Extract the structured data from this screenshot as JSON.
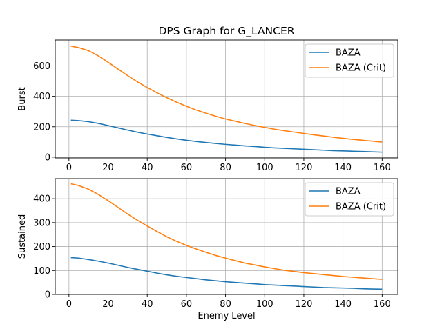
{
  "figure": {
    "title": "DPS Graph for G_LANCER"
  },
  "chart_data": [
    {
      "type": "line",
      "ylabel": "Burst",
      "xlabel": "",
      "xlim": [
        -7,
        168
      ],
      "ylim": [
        -5,
        770
      ],
      "xticks": [
        0,
        20,
        40,
        60,
        80,
        100,
        120,
        140,
        160
      ],
      "yticks": [
        0,
        200,
        400,
        600
      ],
      "grid": true,
      "legend": "top-right",
      "x": [
        1,
        5,
        10,
        15,
        20,
        25,
        30,
        35,
        40,
        45,
        50,
        55,
        60,
        65,
        70,
        75,
        80,
        85,
        90,
        95,
        100,
        105,
        110,
        115,
        120,
        125,
        130,
        135,
        140,
        145,
        150,
        155,
        160
      ],
      "series": [
        {
          "name": "BAZA",
          "color": "#1f77b4",
          "values": [
            243,
            240,
            233,
            222,
            208,
            193,
            178,
            164,
            152,
            141,
            130,
            120,
            111,
            103,
            96,
            90,
            84,
            79,
            74,
            70,
            65,
            61,
            58,
            55,
            52,
            49,
            46,
            43,
            41,
            39,
            37,
            35,
            33
          ]
        },
        {
          "name": "BAZA (Crit)",
          "color": "#ff7f0e",
          "values": [
            730,
            720,
            700,
            666,
            624,
            580,
            536,
            495,
            458,
            423,
            391,
            361,
            335,
            310,
            289,
            269,
            251,
            236,
            221,
            208,
            196,
            184,
            174,
            165,
            156,
            147,
            139,
            131,
            124,
            117,
            111,
            105,
            99
          ]
        }
      ]
    },
    {
      "type": "line",
      "ylabel": "Sustained",
      "xlabel": "Enemy Level",
      "xlim": [
        -7,
        168
      ],
      "ylim": [
        0,
        484
      ],
      "xticks": [
        0,
        20,
        40,
        60,
        80,
        100,
        120,
        140,
        160
      ],
      "yticks": [
        0,
        100,
        200,
        300,
        400
      ],
      "grid": true,
      "legend": "top-right",
      "x": [
        1,
        5,
        10,
        15,
        20,
        25,
        30,
        35,
        40,
        45,
        50,
        55,
        60,
        65,
        70,
        75,
        80,
        85,
        90,
        95,
        100,
        105,
        110,
        115,
        120,
        125,
        130,
        135,
        140,
        145,
        150,
        155,
        160
      ],
      "series": [
        {
          "name": "BAZA",
          "color": "#1f77b4",
          "values": [
            154,
            152,
            146,
            139,
            131,
            122,
            113,
            105,
            97,
            89,
            82,
            76,
            71,
            66,
            61,
            57,
            53,
            50,
            47,
            44,
            41,
            39,
            37,
            35,
            33,
            31,
            29,
            28,
            27,
            26,
            24,
            23,
            22
          ]
        },
        {
          "name": "BAZA (Crit)",
          "color": "#ff7f0e",
          "values": [
            462,
            455,
            440,
            418,
            392,
            364,
            336,
            310,
            286,
            263,
            241,
            222,
            205,
            190,
            176,
            163,
            152,
            141,
            131,
            123,
            115,
            108,
            101,
            96,
            91,
            87,
            83,
            79,
            75,
            72,
            69,
            66,
            63
          ]
        }
      ]
    }
  ]
}
